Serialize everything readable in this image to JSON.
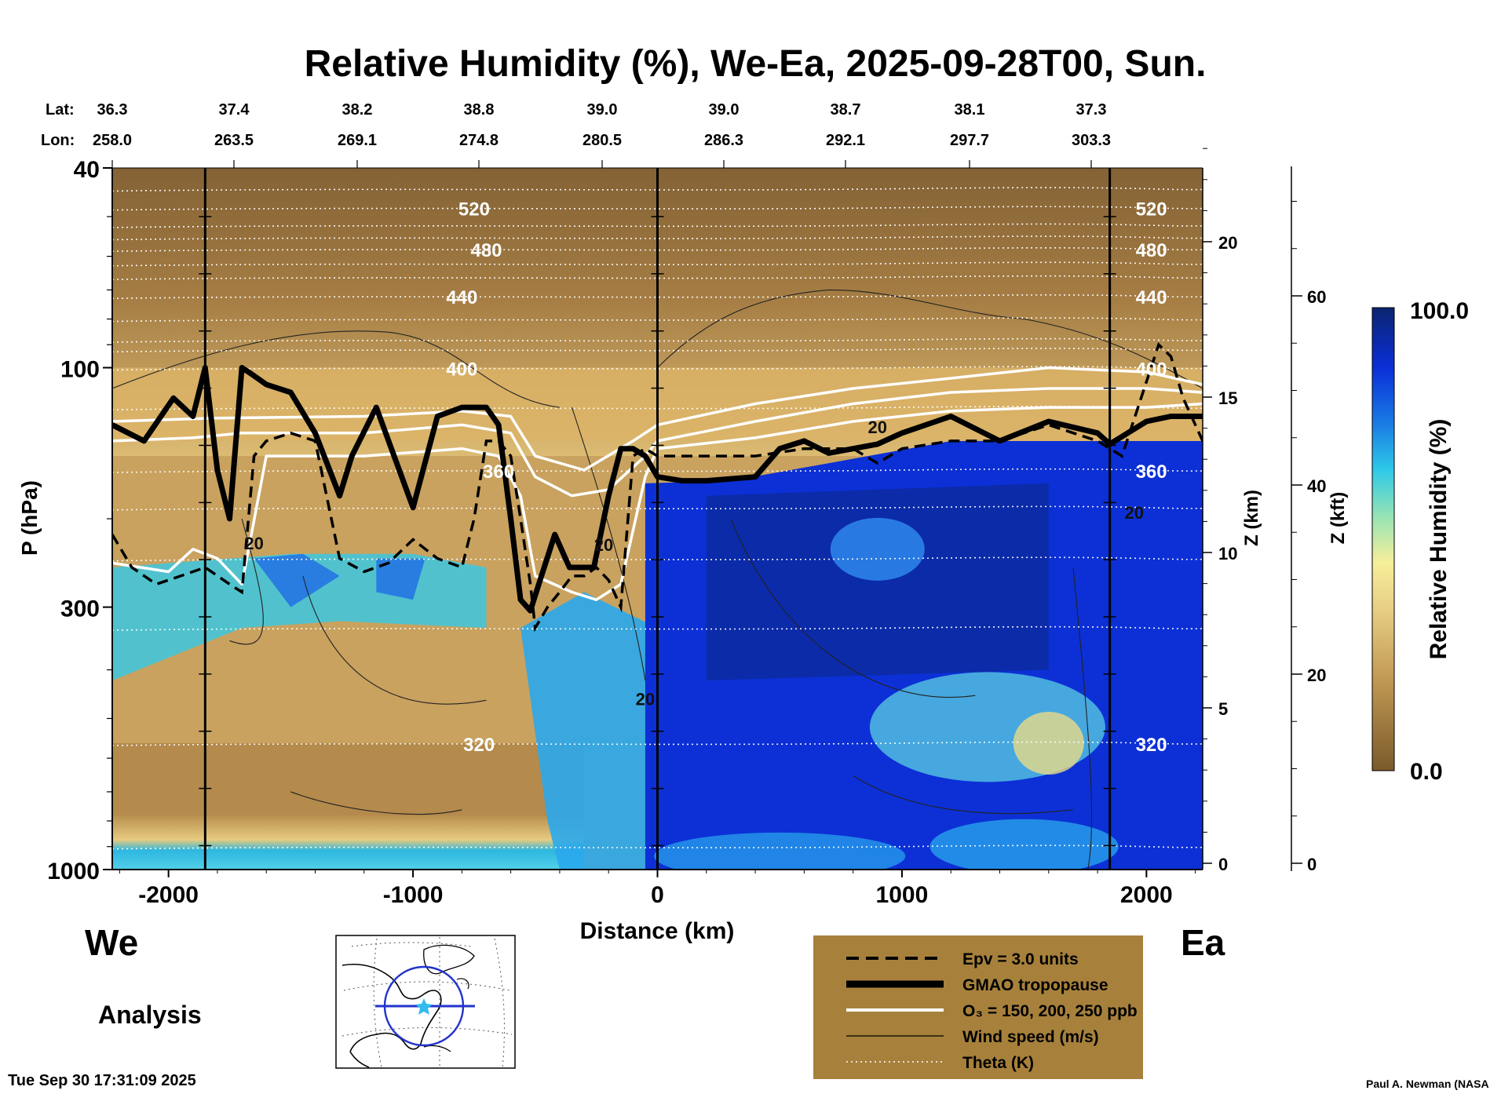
{
  "chart_data": {
    "type": "heatmap",
    "title": "Relative Humidity (%), We-Ea, 2025-09-28T00, Sun.",
    "xlabel": "Distance (km)",
    "ylabel": "P (hPa)",
    "z_km_label": "Z (km)",
    "z_kft_label": "Z (kft)",
    "colorbar_label": "Relative Humidity (%)",
    "colorbar_range": [
      0.0,
      100.0
    ],
    "colorbar_max_label": "100.0",
    "colorbar_min_label": "0.0",
    "xlim": [
      -2230,
      2230
    ],
    "ylim_hpa": [
      1000,
      40
    ],
    "x_ticks": [
      -2000,
      -1000,
      0,
      1000,
      2000
    ],
    "x_tick_labels": [
      "-2000",
      "-1000",
      "0",
      "1000",
      "2000"
    ],
    "p_ticks": [
      40,
      100,
      300,
      1000
    ],
    "p_tick_labels": [
      "40",
      "100",
      "300",
      "1000"
    ],
    "z_km_ticks": [
      0,
      5,
      10,
      15,
      20
    ],
    "z_km_tick_labels": [
      "0",
      "5",
      "10",
      "15",
      "20"
    ],
    "z_kft_ticks": [
      0,
      20,
      40,
      60
    ],
    "z_kft_tick_labels": [
      "0",
      "20",
      "40",
      "60"
    ],
    "lat_label": "Lat:",
    "lon_label": "Lon:",
    "lats": [
      "36.3",
      "37.4",
      "38.2",
      "38.8",
      "39.0",
      "39.0",
      "38.7",
      "38.1",
      "37.3"
    ],
    "lons": [
      "258.0",
      "263.5",
      "269.1",
      "274.8",
      "280.5",
      "286.3",
      "292.1",
      "297.7",
      "303.3"
    ],
    "vertical_markers_km": [
      -1850,
      0,
      1850
    ],
    "theta_levels": [
      {
        "label": "520",
        "p": 48
      },
      {
        "label": "480",
        "p": 58
      },
      {
        "label": "440",
        "p": 72
      },
      {
        "label": "400",
        "p": 100
      },
      {
        "label": "360",
        "p": 160
      },
      {
        "label": "320",
        "p": 560
      }
    ],
    "wind_labels": [
      "20",
      "20",
      "20",
      "20",
      "20"
    ],
    "tropopause_hpa": {
      "x": [
        -2230,
        -2100,
        -1980,
        -1900,
        -1850,
        -1800,
        -1750,
        -1700,
        -1660,
        -1600,
        -1500,
        -1400,
        -1300,
        -1250,
        -1150,
        -1000,
        -900,
        -800,
        -700,
        -650,
        -600,
        -560,
        -520,
        -480,
        -420,
        -360,
        -300,
        -260,
        -200,
        -150,
        -100,
        -50,
        0,
        100,
        200,
        400,
        500,
        600,
        700,
        800,
        900,
        1000,
        1200,
        1400,
        1600,
        1800,
        1850,
        2000,
        2100,
        2230
      ],
      "p": [
        130,
        140,
        115,
        125,
        100,
        160,
        200,
        100,
        103,
        108,
        112,
        135,
        180,
        150,
        120,
        190,
        125,
        120,
        120,
        130,
        200,
        290,
        305,
        265,
        215,
        250,
        250,
        250,
        180,
        145,
        145,
        150,
        165,
        168,
        168,
        165,
        145,
        140,
        148,
        145,
        142,
        135,
        125,
        140,
        128,
        135,
        142,
        128,
        125,
        125
      ]
    },
    "epv_hpa": {
      "x": [
        -2230,
        -2150,
        -2050,
        -1950,
        -1850,
        -1750,
        -1700,
        -1650,
        -1600,
        -1500,
        -1400,
        -1300,
        -1200,
        -1100,
        -1000,
        -900,
        -800,
        -750,
        -700,
        -650,
        -600,
        -560,
        -520,
        -500,
        -450,
        -400,
        -350,
        -300,
        -250,
        -200,
        -150,
        -100,
        -50,
        0,
        200,
        400,
        600,
        800,
        900,
        1000,
        1200,
        1400,
        1600,
        1800,
        1900,
        2050,
        2100,
        2150,
        2230
      ],
      "p": [
        215,
        250,
        270,
        260,
        250,
        270,
        280,
        150,
        140,
        135,
        140,
        240,
        255,
        245,
        220,
        240,
        250,
        200,
        140,
        140,
        150,
        200,
        270,
        330,
        300,
        280,
        260,
        260,
        250,
        265,
        300,
        150,
        145,
        150,
        150,
        150,
        145,
        145,
        155,
        145,
        140,
        140,
        130,
        140,
        150,
        90,
        95,
        115,
        140
      ]
    },
    "ozone_hpa": [
      {
        "x": [
          -2230,
          -2000,
          -1900,
          -1800,
          -1700,
          -1600,
          -1200,
          -800,
          -650,
          -560,
          -500,
          -350,
          -250,
          -150,
          -50,
          0,
          400,
          800,
          1200,
          1600,
          2000,
          2230
        ],
        "p": [
          245,
          255,
          230,
          240,
          270,
          150,
          150,
          145,
          150,
          180,
          260,
          280,
          290,
          270,
          165,
          145,
          138,
          128,
          122,
          120,
          120,
          118
        ]
      },
      {
        "x": [
          -2230,
          -1900,
          -1700,
          -1200,
          -800,
          -600,
          -500,
          -350,
          -200,
          -50,
          0,
          400,
          800,
          1200,
          1600,
          2000,
          2230
        ],
        "p": [
          140,
          138,
          135,
          135,
          130,
          135,
          165,
          180,
          175,
          150,
          140,
          128,
          118,
          112,
          110,
          110,
          112
        ]
      },
      {
        "x": [
          -2230,
          -1800,
          -1200,
          -800,
          -600,
          -500,
          -300,
          -100,
          0,
          400,
          800,
          1200,
          1600,
          2000,
          2230
        ],
        "p": [
          128,
          126,
          125,
          122,
          125,
          150,
          160,
          140,
          130,
          118,
          110,
          105,
          100,
          102,
          108
        ]
      }
    ],
    "legend": [
      {
        "style": "dashed",
        "label": "Epv = 3.0 units"
      },
      {
        "style": "thick",
        "label": "GMAO tropopause"
      },
      {
        "style": "white",
        "label": "O₃ = 150, 200, 250 ppb"
      },
      {
        "style": "thin",
        "label": "Wind speed (m/s)"
      },
      {
        "style": "dotted",
        "label": "Theta (K)"
      }
    ],
    "left_label": "We",
    "right_label": "Ea",
    "analysis_label": "Analysis",
    "timestamp": "Tue Sep 30 17:31:09 2025",
    "credit": "Paul A. Newman (NASA"
  }
}
